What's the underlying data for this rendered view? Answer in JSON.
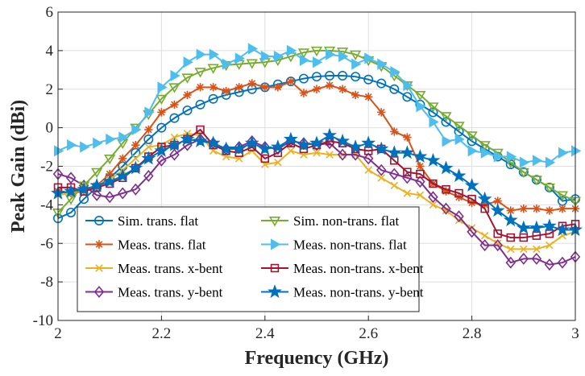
{
  "chart_data": {
    "type": "line",
    "title": "",
    "xlabel": "Frequency (GHz)",
    "ylabel": "Peak Gain (dBi)",
    "xlim": [
      2,
      3
    ],
    "ylim": [
      -10,
      6
    ],
    "xticks": [
      "2",
      "2.2",
      "2.4",
      "2.6",
      "2.8",
      "3"
    ],
    "yticks": [
      "-10",
      "-8",
      "-6",
      "-4",
      "-2",
      "0",
      "2",
      "4",
      "6"
    ],
    "grid": true,
    "legend_position": "bottom-left",
    "series": [
      {
        "name": "Sim. trans. flat",
        "color": "#0072BD",
        "marker": "circle",
        "x": [
          2,
          2.025,
          2.05,
          2.075,
          2.1,
          2.125,
          2.15,
          2.175,
          2.2,
          2.225,
          2.25,
          2.275,
          2.3,
          2.325,
          2.35,
          2.375,
          2.4,
          2.425,
          2.45,
          2.475,
          2.5,
          2.525,
          2.55,
          2.575,
          2.6,
          2.625,
          2.65,
          2.675,
          2.7,
          2.725,
          2.75,
          2.775,
          2.8,
          2.825,
          2.85,
          2.875,
          2.9,
          2.925,
          2.95,
          2.975,
          3
        ],
        "y": [
          -4.7,
          -4.4,
          -3.7,
          -3.1,
          -2.6,
          -2.0,
          -1.3,
          -0.6,
          0.0,
          0.5,
          0.9,
          1.2,
          1.5,
          1.7,
          1.85,
          2.0,
          2.1,
          2.25,
          2.4,
          2.55,
          2.65,
          2.7,
          2.7,
          2.65,
          2.5,
          2.3,
          2.0,
          1.6,
          1.2,
          0.8,
          0.3,
          -0.2,
          -0.7,
          -1.1,
          -1.5,
          -1.9,
          -2.3,
          -2.7,
          -3.1,
          -3.8,
          -3.7
        ]
      },
      {
        "name": "Meas. trans. flat",
        "color": "#D95319",
        "marker": "asterisk",
        "x": [
          2,
          2.025,
          2.05,
          2.075,
          2.1,
          2.125,
          2.15,
          2.175,
          2.2,
          2.225,
          2.25,
          2.275,
          2.3,
          2.325,
          2.35,
          2.375,
          2.4,
          2.425,
          2.45,
          2.475,
          2.5,
          2.525,
          2.55,
          2.575,
          2.6,
          2.625,
          2.65,
          2.675,
          2.7,
          2.725,
          2.75,
          2.775,
          2.8,
          2.825,
          2.85,
          2.875,
          2.9,
          2.925,
          2.95,
          2.975,
          3
        ],
        "y": [
          -3.3,
          -3.4,
          -3.3,
          -3.0,
          -2.4,
          -1.6,
          -0.9,
          -0.1,
          0.8,
          1.2,
          1.7,
          2.1,
          2.1,
          1.9,
          2.1,
          2.3,
          2.1,
          2.1,
          2.4,
          1.8,
          2.0,
          2.2,
          2.0,
          1.7,
          1.6,
          0.8,
          -0.2,
          -0.5,
          -2.0,
          -2.9,
          -3.3,
          -3.6,
          -3.9,
          -4.0,
          -3.8,
          -4.3,
          -4.2,
          -4.2,
          -4.3,
          -4.2,
          -4.2
        ]
      },
      {
        "name": "Meas. trans. x-bent",
        "color": "#EDB120",
        "marker": "cross",
        "x": [
          2,
          2.025,
          2.05,
          2.075,
          2.1,
          2.125,
          2.15,
          2.175,
          2.2,
          2.225,
          2.25,
          2.275,
          2.3,
          2.325,
          2.35,
          2.375,
          2.4,
          2.425,
          2.45,
          2.475,
          2.5,
          2.525,
          2.55,
          2.575,
          2.6,
          2.625,
          2.65,
          2.675,
          2.7,
          2.725,
          2.75,
          2.775,
          2.8,
          2.825,
          2.85,
          2.875,
          2.9,
          2.925,
          2.95,
          2.975,
          3
        ],
        "y": [
          -3.5,
          -3.4,
          -3.2,
          -3.1,
          -2.7,
          -2.2,
          -1.6,
          -1.0,
          -0.9,
          -0.5,
          -0.3,
          -0.4,
          -1.2,
          -1.5,
          -1.6,
          -1.2,
          -1.9,
          -1.8,
          -1.2,
          -1.4,
          -1.3,
          -1.4,
          -1.4,
          -1.4,
          -2.2,
          -2.6,
          -3.0,
          -3.4,
          -3.5,
          -4.0,
          -4.3,
          -4.8,
          -5.2,
          -5.6,
          -6.0,
          -6.3,
          -6.3,
          -6.3,
          -6.1,
          -5.6,
          -5.4
        ]
      },
      {
        "name": "Meas. trans. y-bent",
        "color": "#7E2F8E",
        "marker": "diamond",
        "x": [
          2,
          2.025,
          2.05,
          2.075,
          2.1,
          2.125,
          2.15,
          2.175,
          2.2,
          2.225,
          2.25,
          2.275,
          2.3,
          2.325,
          2.35,
          2.375,
          2.4,
          2.425,
          2.45,
          2.475,
          2.5,
          2.525,
          2.55,
          2.575,
          2.6,
          2.625,
          2.65,
          2.675,
          2.7,
          2.725,
          2.75,
          2.775,
          2.8,
          2.825,
          2.85,
          2.875,
          2.9,
          2.925,
          2.95,
          2.975,
          3
        ],
        "y": [
          -2.4,
          -2.6,
          -3.0,
          -3.5,
          -3.6,
          -3.4,
          -3.2,
          -2.5,
          -1.7,
          -1.4,
          -0.9,
          -0.6,
          -0.8,
          -1.1,
          -1.0,
          -0.7,
          -1.0,
          -1.1,
          -0.7,
          -0.8,
          -0.9,
          -0.8,
          -1.4,
          -1.4,
          -1.6,
          -2.2,
          -2.4,
          -2.6,
          -2.8,
          -3.6,
          -4.2,
          -4.6,
          -5.4,
          -6.1,
          -6.1,
          -7.0,
          -6.8,
          -6.8,
          -7.1,
          -7.0,
          -6.7
        ]
      },
      {
        "name": "Sim. non-trans. flat",
        "color": "#77AC30",
        "marker": "triangle-down",
        "x": [
          2,
          2.025,
          2.05,
          2.075,
          2.1,
          2.125,
          2.15,
          2.175,
          2.2,
          2.225,
          2.25,
          2.275,
          2.3,
          2.325,
          2.35,
          2.375,
          2.4,
          2.425,
          2.45,
          2.475,
          2.5,
          2.525,
          2.55,
          2.575,
          2.6,
          2.625,
          2.65,
          2.675,
          2.7,
          2.725,
          2.75,
          2.775,
          2.8,
          2.825,
          2.85,
          2.875,
          2.9,
          2.925,
          2.95,
          2.975,
          3
        ],
        "y": [
          -4.4,
          -3.7,
          -3.0,
          -2.3,
          -1.6,
          -0.8,
          0.0,
          0.7,
          1.5,
          2.1,
          2.6,
          2.9,
          3.1,
          3.25,
          3.3,
          3.35,
          3.4,
          3.5,
          3.7,
          3.9,
          4.0,
          4.0,
          3.95,
          3.8,
          3.5,
          3.2,
          2.7,
          2.2,
          1.7,
          1.1,
          0.6,
          0.1,
          -0.4,
          -0.9,
          -1.3,
          -1.8,
          -2.3,
          -2.7,
          -3.1,
          -3.5,
          -3.8
        ]
      },
      {
        "name": "Meas. non-trans. flat",
        "color": "#4DBEEE",
        "marker": "triangle-right",
        "x": [
          2,
          2.025,
          2.05,
          2.075,
          2.1,
          2.125,
          2.15,
          2.175,
          2.2,
          2.225,
          2.25,
          2.275,
          2.3,
          2.325,
          2.35,
          2.375,
          2.4,
          2.425,
          2.45,
          2.475,
          2.5,
          2.525,
          2.55,
          2.575,
          2.6,
          2.625,
          2.65,
          2.675,
          2.7,
          2.725,
          2.75,
          2.775,
          2.8,
          2.825,
          2.85,
          2.875,
          2.9,
          2.925,
          2.95,
          2.975,
          3
        ],
        "y": [
          -1.2,
          -0.9,
          -1.0,
          -0.8,
          -0.6,
          -0.5,
          -0.1,
          0.8,
          2.1,
          2.7,
          3.4,
          3.8,
          3.8,
          3.3,
          3.6,
          4.1,
          3.7,
          3.7,
          4.0,
          3.5,
          3.4,
          3.8,
          3.7,
          3.3,
          3.6,
          3.3,
          2.9,
          2.2,
          1.1,
          0.3,
          -0.7,
          -0.6,
          -1.2,
          -1.3,
          -1.5,
          -1.5,
          -1.8,
          -1.7,
          -1.8,
          -1.3,
          -1.2
        ]
      },
      {
        "name": "Meas. non-trans. x-bent",
        "color": "#A2142F",
        "marker": "square",
        "x": [
          2,
          2.025,
          2.05,
          2.075,
          2.1,
          2.125,
          2.15,
          2.175,
          2.2,
          2.225,
          2.25,
          2.275,
          2.3,
          2.325,
          2.35,
          2.375,
          2.4,
          2.425,
          2.45,
          2.475,
          2.5,
          2.525,
          2.55,
          2.575,
          2.6,
          2.625,
          2.65,
          2.675,
          2.7,
          2.725,
          2.75,
          2.775,
          2.8,
          2.825,
          2.85,
          2.875,
          2.9,
          2.925,
          2.95,
          2.975,
          3
        ],
        "y": [
          -3.1,
          -3.1,
          -3.3,
          -3.1,
          -2.9,
          -2.6,
          -2.1,
          -1.5,
          -1.0,
          -0.9,
          -0.6,
          -0.1,
          -0.9,
          -1.2,
          -1.3,
          -1.0,
          -1.6,
          -1.3,
          -0.8,
          -1.1,
          -0.9,
          -0.7,
          -0.8,
          -1.1,
          -1.2,
          -1.1,
          -1.7,
          -2.3,
          -2.4,
          -2.9,
          -3.2,
          -3.4,
          -3.7,
          -4.2,
          -5.5,
          -5.7,
          -5.7,
          -5.6,
          -5.5,
          -5.1,
          -5.0
        ]
      },
      {
        "name": "Meas. non-trans. y-bent",
        "color": "#0072BD",
        "marker": "pentagram",
        "x": [
          2,
          2.025,
          2.05,
          2.075,
          2.1,
          2.125,
          2.15,
          2.175,
          2.2,
          2.225,
          2.25,
          2.275,
          2.3,
          2.325,
          2.35,
          2.375,
          2.4,
          2.425,
          2.45,
          2.475,
          2.5,
          2.525,
          2.55,
          2.575,
          2.6,
          2.625,
          2.65,
          2.675,
          2.7,
          2.725,
          2.75,
          2.775,
          2.8,
          2.825,
          2.85,
          2.875,
          2.9,
          2.925,
          2.95,
          2.975,
          3
        ],
        "y": [
          -3.4,
          -3.3,
          -3.2,
          -3.0,
          -2.8,
          -2.5,
          -2.1,
          -1.6,
          -1.2,
          -0.9,
          -0.6,
          -0.7,
          -0.8,
          -1.1,
          -1.1,
          -0.8,
          -1.1,
          -1.0,
          -0.6,
          -0.9,
          -0.8,
          -0.4,
          -0.7,
          -1.0,
          -0.8,
          -1.1,
          -1.3,
          -1.3,
          -1.5,
          -1.7,
          -2.1,
          -2.5,
          -3.0,
          -3.7,
          -4.3,
          -4.8,
          -5.2,
          -5.2,
          -5.1,
          -5.3,
          -5.3
        ]
      }
    ],
    "legend_order": [
      0,
      4,
      1,
      5,
      2,
      6,
      3,
      7
    ]
  }
}
